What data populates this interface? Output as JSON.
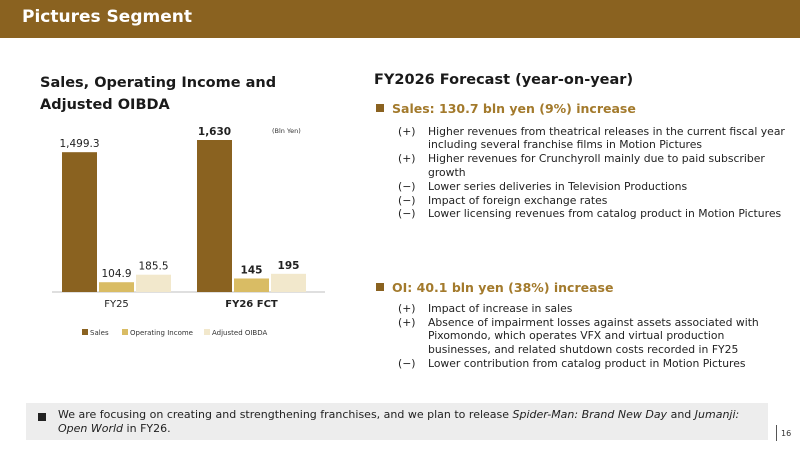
{
  "header": {
    "title": "Pictures Segment"
  },
  "left": {
    "title_line1": "Sales, Operating Income and",
    "title_line2": "Adjusted OIBDA"
  },
  "chart_data": {
    "type": "bar",
    "categories": [
      "FY25",
      "FY26 FCT"
    ],
    "unit_label": "(Bln Yen)",
    "series": [
      {
        "name": "Sales",
        "values": [
          1499.3,
          1630
        ],
        "labels": [
          "1,499.3",
          "1,630"
        ],
        "color": "#8a6220"
      },
      {
        "name": "Operating Income",
        "values": [
          104.9,
          145
        ],
        "labels": [
          "104.9",
          "145"
        ],
        "color": "#d9bc64"
      },
      {
        "name": "Adjusted OIBDA",
        "values": [
          185.5,
          195
        ],
        "labels": [
          "185.5",
          "195"
        ],
        "color": "#f2e8cc"
      }
    ],
    "bold_categories": [
      false,
      true
    ],
    "ylim": [
      0,
      1630
    ],
    "legend_position": "bottom",
    "grid": false
  },
  "right": {
    "title": "FY2026 Forecast (year-on-year)",
    "sales": {
      "heading": "Sales: 130.7 bln yen (9%) increase",
      "items": [
        {
          "mark": "(+)",
          "text": "Higher revenues from theatrical releases in the current fiscal year including several franchise films in Motion Pictures"
        },
        {
          "mark": "(+)",
          "text": "Higher revenues for Crunchyroll mainly due to paid subscriber growth"
        },
        {
          "mark": "(−)",
          "text": "Lower series deliveries in Television Productions"
        },
        {
          "mark": "(−)",
          "text": "Impact of foreign exchange rates"
        },
        {
          "mark": "(−)",
          "text": "Lower licensing revenues from catalog product in Motion Pictures"
        }
      ]
    },
    "oi": {
      "heading": "OI: 40.1 bln yen (38%) increase",
      "items": [
        {
          "mark": "(+)",
          "text": "Impact of increase in sales"
        },
        {
          "mark": "(+)",
          "text": "Absence of impairment losses against assets associated with Pixomondo, which operates VFX and virtual production businesses, and related shutdown costs recorded in FY25"
        },
        {
          "mark": "(−)",
          "text": "Lower contribution from catalog product in Motion Pictures"
        }
      ]
    }
  },
  "note": {
    "text_1": "We are focusing on creating and strengthening franchises, and we plan to release ",
    "title_1": "Spider-Man: Brand New Day",
    "text_2": " and ",
    "title_2": "Jumanji: Open World",
    "text_3": " in FY26."
  },
  "page": {
    "number": "16"
  }
}
